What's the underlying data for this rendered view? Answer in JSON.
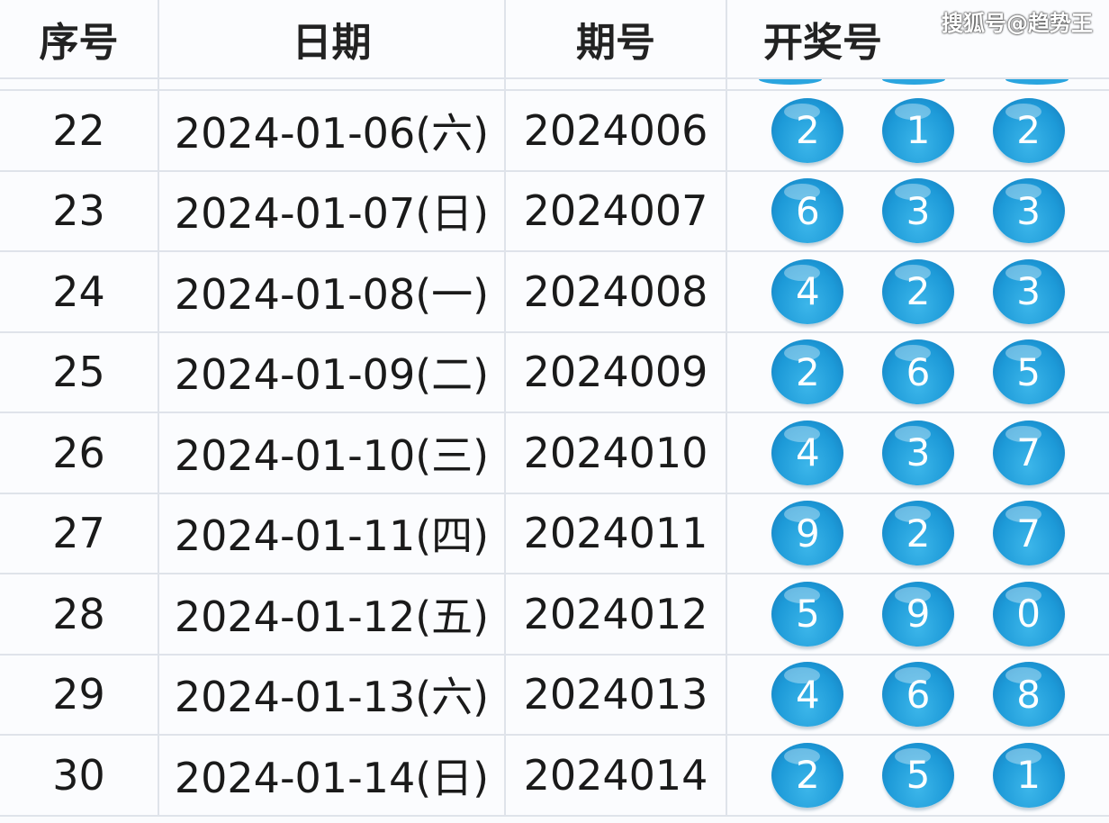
{
  "header": {
    "seq": "序号",
    "date": "日期",
    "issue": "期号",
    "numbers": "开奖号"
  },
  "watermark": "搜狐号@趋势王",
  "ball_color": "#1d9ad8",
  "rows": [
    {
      "seq": "22",
      "date": "2024-01-06(六)",
      "issue": "2024006",
      "nums": [
        "2",
        "1",
        "2"
      ]
    },
    {
      "seq": "23",
      "date": "2024-01-07(日)",
      "issue": "2024007",
      "nums": [
        "6",
        "3",
        "3"
      ]
    },
    {
      "seq": "24",
      "date": "2024-01-08(一)",
      "issue": "2024008",
      "nums": [
        "4",
        "2",
        "3"
      ]
    },
    {
      "seq": "25",
      "date": "2024-01-09(二)",
      "issue": "2024009",
      "nums": [
        "2",
        "6",
        "5"
      ]
    },
    {
      "seq": "26",
      "date": "2024-01-10(三)",
      "issue": "2024010",
      "nums": [
        "4",
        "3",
        "7"
      ]
    },
    {
      "seq": "27",
      "date": "2024-01-11(四)",
      "issue": "2024011",
      "nums": [
        "9",
        "2",
        "7"
      ]
    },
    {
      "seq": "28",
      "date": "2024-01-12(五)",
      "issue": "2024012",
      "nums": [
        "5",
        "9",
        "0"
      ]
    },
    {
      "seq": "29",
      "date": "2024-01-13(六)",
      "issue": "2024013",
      "nums": [
        "4",
        "6",
        "8"
      ]
    },
    {
      "seq": "30",
      "date": "2024-01-14(日)",
      "issue": "2024014",
      "nums": [
        "2",
        "5",
        "1"
      ]
    }
  ]
}
